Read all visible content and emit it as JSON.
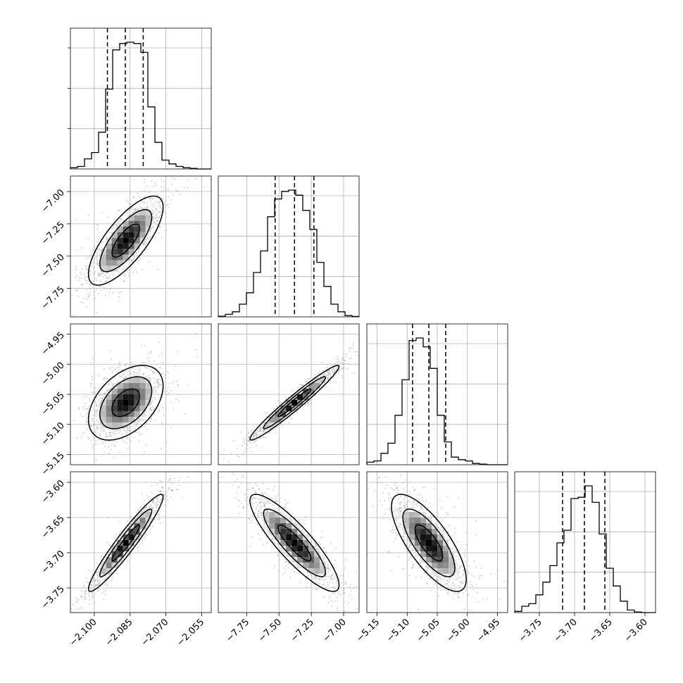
{
  "chart_data": {
    "type": "corner",
    "grid": true,
    "colors": {
      "line": "#000000",
      "grid": "#b0b0b0",
      "scatter": "#9a9a9a"
    },
    "params": [
      {
        "range": [
          -2.11,
          -2.051
        ],
        "ticks": [
          "-2.100",
          "-2.085",
          "-2.070",
          "-2.055"
        ],
        "tick_values": [
          -2.1,
          -2.085,
          -2.07,
          -2.055
        ],
        "quantiles": [
          -2.0945,
          -2.087,
          -2.0795
        ]
      },
      {
        "range": [
          -7.97,
          -6.88
        ],
        "ticks": [
          "-7.75",
          "-7.50",
          "-7.25",
          "-7.00"
        ],
        "tick_values": [
          -7.75,
          -7.5,
          -7.25,
          -7.0
        ],
        "quantiles": [
          -7.53,
          -7.38,
          -7.23
        ]
      },
      {
        "range": [
          -5.167,
          -4.933
        ],
        "ticks": [
          "-5.15",
          "-5.10",
          "-5.05",
          "-5.00",
          "-4.95"
        ],
        "tick_values": [
          -5.15,
          -5.1,
          -5.05,
          -5.0,
          -4.95
        ],
        "quantiles": [
          -5.091,
          -5.064,
          -5.036
        ]
      },
      {
        "range": [
          -3.785,
          -3.585
        ],
        "ticks": [
          "-3.75",
          "-3.70",
          "-3.65",
          "-3.60"
        ],
        "tick_values": [
          -3.75,
          -3.7,
          -3.65,
          -3.6
        ],
        "quantiles": [
          -3.717,
          -3.686,
          -3.657
        ]
      }
    ],
    "histograms": [
      [
        0.01,
        0.02,
        0.08,
        0.13,
        0.29,
        0.63,
        0.94,
        0.99,
        1.0,
        0.99,
        0.92,
        0.49,
        0.21,
        0.07,
        0.04,
        0.02,
        0.01,
        0.005,
        0,
        0
      ],
      [
        0.005,
        0.02,
        0.04,
        0.1,
        0.19,
        0.35,
        0.52,
        0.79,
        0.93,
        0.99,
        1.0,
        0.96,
        0.84,
        0.69,
        0.43,
        0.24,
        0.1,
        0.04,
        0.01,
        0.003
      ],
      [
        0.02,
        0.03,
        0.09,
        0.17,
        0.39,
        0.67,
        0.98,
        1.0,
        0.93,
        0.76,
        0.39,
        0.18,
        0.06,
        0.04,
        0.03,
        0.01,
        0.005,
        0,
        0,
        0
      ],
      [
        0.01,
        0.05,
        0.07,
        0.14,
        0.24,
        0.37,
        0.55,
        0.65,
        0.9,
        0.91,
        1.0,
        0.87,
        0.62,
        0.35,
        0.21,
        0.09,
        0.02,
        0.005,
        0,
        0
      ]
    ],
    "pairs": [
      {
        "i": 1,
        "j": 0,
        "mean": [
          -2.0868,
          -7.38
        ],
        "sd": [
          0.0068,
          0.15
        ],
        "rho": 0.75
      },
      {
        "i": 2,
        "j": 0,
        "mean": [
          -2.0868,
          -5.064
        ],
        "sd": [
          0.0068,
          0.027
        ],
        "rho": 0.45
      },
      {
        "i": 2,
        "j": 1,
        "mean": [
          -7.38,
          -5.064
        ],
        "sd": [
          0.15,
          0.027
        ],
        "rho": 0.97
      },
      {
        "i": 3,
        "j": 0,
        "mean": [
          -2.0868,
          -3.686
        ],
        "sd": [
          0.0068,
          0.03
        ],
        "rho": 0.95
      },
      {
        "i": 3,
        "j": 1,
        "mean": [
          -7.38,
          -3.686
        ],
        "sd": [
          0.15,
          0.03
        ],
        "rho": -0.87
      },
      {
        "i": 3,
        "j": 2,
        "mean": [
          -5.064,
          -3.686
        ],
        "sd": [
          0.027,
          0.03
        ],
        "rho": -0.75
      }
    ]
  }
}
